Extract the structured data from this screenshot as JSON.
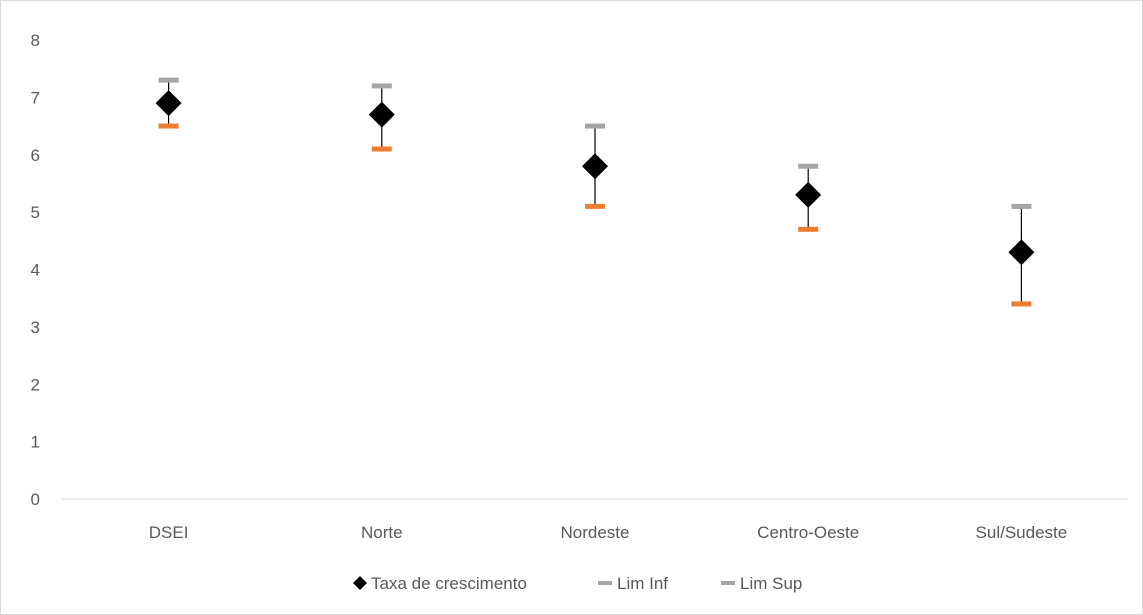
{
  "chart_data": {
    "type": "scatter",
    "categories": [
      "DSEI",
      "Norte",
      "Nordeste",
      "Centro-Oeste",
      "Sul/Sudeste"
    ],
    "series": [
      {
        "name": "Taxa de crescimento",
        "values": [
          6.9,
          6.7,
          5.8,
          5.3,
          4.3
        ],
        "color": "#000000",
        "marker": "diamond"
      },
      {
        "name": "Lim Inf",
        "values": [
          6.5,
          6.1,
          5.1,
          4.7,
          3.4
        ],
        "color": "#ed7d31",
        "marker": "dash"
      },
      {
        "name": "Lim Sup",
        "values": [
          7.3,
          7.2,
          6.5,
          5.8,
          5.1
        ],
        "color": "#a5a5a5",
        "marker": "dash"
      }
    ],
    "ylim": [
      0,
      8
    ],
    "yticks": [
      "0",
      "1",
      "2",
      "3",
      "4",
      "5",
      "6",
      "7",
      "8"
    ],
    "grid": false,
    "legend_position": "bottom",
    "axis_color": "#d9d9d9",
    "text_color": "#595959",
    "errorbar_color": "#000000"
  }
}
